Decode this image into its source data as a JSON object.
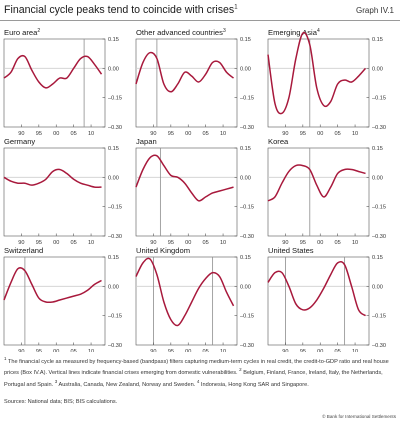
{
  "title": "Financial cycle peaks tend to coincide with crises",
  "title_note": "1",
  "graph_id": "Graph IV.1",
  "footnote": [
    {
      "mark": "1",
      "text": " The financial cycle as measured by frequency-based (bandpass) filters capturing medium-term cycles in real credit, the credit-to-GDP ratio and real house prices (Box IV.A). Vertical lines indicate financial crises emerging from domestic vulnerabilities. "
    },
    {
      "mark": "2",
      "text": " Belgium, Finland, France, Ireland, Italy, the Netherlands, Portugal and Spain. "
    },
    {
      "mark": "3",
      "text": " Australia, Canada, New Zealand, Norway and Sweden. "
    },
    {
      "mark": "4",
      "text": " Indonesia, Hong Kong SAR and Singapore."
    }
  ],
  "sources": "Sources: National data; BIS; BIS calculations.",
  "copyright": "© Bank for International Settlements",
  "colors": {
    "line": "#a8193c",
    "crisis_line": "#8c8c8c",
    "zero_line": "#cfcfcf"
  },
  "chart_data": [
    {
      "type": "line",
      "title": "Euro area",
      "note": "2",
      "x": [
        1985,
        1987,
        1989,
        1991,
        1993,
        1995,
        1997,
        1999,
        2001,
        2003,
        2005,
        2007,
        2009,
        2011,
        2013
      ],
      "y": [
        -0.05,
        -0.02,
        0.05,
        0.06,
        -0.01,
        -0.07,
        -0.1,
        -0.08,
        -0.05,
        -0.05,
        0.0,
        0.05,
        0.06,
        0.02,
        -0.03
      ],
      "crises": [
        2008
      ],
      "x_ticks": [
        "90",
        "95",
        "00",
        "05",
        "10"
      ],
      "y_ticks": [
        "0.15",
        "0.00",
        "–0.15",
        "–0.30"
      ],
      "ylim": [
        -0.3,
        0.15
      ]
    },
    {
      "type": "line",
      "title": "Other advanced countries",
      "note": "3",
      "x": [
        1985,
        1987,
        1989,
        1991,
        1993,
        1995,
        1997,
        1999,
        2001,
        2003,
        2005,
        2007,
        2009,
        2011,
        2013
      ],
      "y": [
        -0.08,
        0.03,
        0.08,
        0.05,
        -0.08,
        -0.12,
        -0.08,
        -0.02,
        -0.04,
        -0.07,
        -0.03,
        0.03,
        0.03,
        -0.02,
        -0.05
      ],
      "crises": [
        1991
      ],
      "x_ticks": [
        "90",
        "95",
        "00",
        "05",
        "10"
      ],
      "y_ticks": [
        "0.15",
        "0.00",
        "–0.15",
        "–0.30"
      ],
      "ylim": [
        -0.3,
        0.15
      ]
    },
    {
      "type": "line",
      "title": "Emerging Asia",
      "note": "4",
      "x": [
        1985,
        1987,
        1989,
        1991,
        1993,
        1995,
        1997,
        1999,
        2001,
        2003,
        2005,
        2007,
        2009,
        2011,
        2013
      ],
      "y": [
        0.07,
        -0.18,
        -0.23,
        -0.15,
        0.05,
        0.18,
        0.12,
        -0.1,
        -0.19,
        -0.17,
        -0.08,
        -0.06,
        -0.07,
        -0.04,
        0.0
      ],
      "crises": [
        1997
      ],
      "x_ticks": [
        "90",
        "95",
        "00",
        "05",
        "10"
      ],
      "y_ticks": [
        "0.15",
        "0.00",
        "–0.15",
        "–0.30"
      ],
      "ylim": [
        -0.3,
        0.15
      ]
    },
    {
      "type": "line",
      "title": "Germany",
      "note": "",
      "x": [
        1985,
        1987,
        1989,
        1991,
        1993,
        1995,
        1997,
        1999,
        2001,
        2003,
        2005,
        2007,
        2009,
        2011,
        2013
      ],
      "y": [
        0.0,
        -0.02,
        -0.03,
        -0.03,
        -0.04,
        -0.03,
        -0.01,
        0.03,
        0.04,
        0.02,
        -0.01,
        -0.03,
        -0.04,
        -0.05,
        -0.05
      ],
      "crises": [],
      "x_ticks": [
        "90",
        "95",
        "00",
        "05",
        "10"
      ],
      "y_ticks": [
        "0.15",
        "0.00",
        "–0.15",
        "–0.30"
      ],
      "ylim": [
        -0.3,
        0.15
      ]
    },
    {
      "type": "line",
      "title": "Japan",
      "note": "",
      "x": [
        1985,
        1987,
        1989,
        1991,
        1993,
        1995,
        1997,
        1999,
        2001,
        2003,
        2005,
        2007,
        2009,
        2011,
        2013
      ],
      "y": [
        -0.05,
        0.04,
        0.1,
        0.11,
        0.06,
        0.01,
        0.0,
        -0.03,
        -0.08,
        -0.12,
        -0.1,
        -0.08,
        -0.07,
        -0.06,
        -0.05
      ],
      "crises": [
        1992
      ],
      "x_ticks": [
        "90",
        "95",
        "00",
        "05",
        "10"
      ],
      "y_ticks": [
        "0.15",
        "0.00",
        "–0.15",
        "–0.30"
      ],
      "ylim": [
        -0.3,
        0.15
      ]
    },
    {
      "type": "line",
      "title": "Korea",
      "note": "",
      "x": [
        1985,
        1987,
        1989,
        1991,
        1993,
        1995,
        1997,
        1999,
        2001,
        2003,
        2005,
        2007,
        2009,
        2011,
        2013
      ],
      "y": [
        -0.12,
        -0.1,
        -0.03,
        0.03,
        0.06,
        0.06,
        0.04,
        -0.04,
        -0.1,
        -0.05,
        0.02,
        0.04,
        0.04,
        0.03,
        0.02
      ],
      "crises": [
        1997
      ],
      "x_ticks": [
        "90",
        "95",
        "00",
        "05",
        "10"
      ],
      "y_ticks": [
        "0.15",
        "0.00",
        "–0.15",
        "–0.30"
      ],
      "ylim": [
        -0.3,
        0.15
      ]
    },
    {
      "type": "line",
      "title": "Switzerland",
      "note": "",
      "x": [
        1985,
        1987,
        1989,
        1991,
        1993,
        1995,
        1997,
        1999,
        2001,
        2003,
        2005,
        2007,
        2009,
        2011,
        2013
      ],
      "y": [
        -0.07,
        0.02,
        0.09,
        0.08,
        0.01,
        -0.06,
        -0.08,
        -0.08,
        -0.07,
        -0.06,
        -0.05,
        -0.04,
        -0.02,
        0.01,
        0.03
      ],
      "crises": [
        1991
      ],
      "x_ticks": [
        "90",
        "95",
        "00",
        "05",
        "10"
      ],
      "y_ticks": [
        "0.15",
        "0.00",
        "–0.15",
        "–0.30"
      ],
      "ylim": [
        -0.3,
        0.15
      ]
    },
    {
      "type": "line",
      "title": "United Kingdom",
      "note": "",
      "x": [
        1985,
        1987,
        1989,
        1991,
        1993,
        1995,
        1997,
        1999,
        2001,
        2003,
        2005,
        2007,
        2009,
        2011,
        2013
      ],
      "y": [
        0.05,
        0.12,
        0.14,
        0.06,
        -0.08,
        -0.17,
        -0.2,
        -0.15,
        -0.08,
        -0.01,
        0.04,
        0.07,
        0.05,
        -0.03,
        -0.1
      ],
      "crises": [
        1990,
        2007
      ],
      "x_ticks": [
        "90",
        "95",
        "00",
        "05",
        "10"
      ],
      "y_ticks": [
        "0.15",
        "0.00",
        "–0.15",
        "–0.30"
      ],
      "ylim": [
        -0.3,
        0.15
      ]
    },
    {
      "type": "line",
      "title": "United States",
      "note": "",
      "x": [
        1985,
        1987,
        1989,
        1991,
        1993,
        1995,
        1997,
        1999,
        2001,
        2003,
        2005,
        2007,
        2009,
        2011,
        2013
      ],
      "y": [
        0.02,
        0.07,
        0.07,
        0.0,
        -0.09,
        -0.12,
        -0.11,
        -0.07,
        -0.01,
        0.06,
        0.12,
        0.11,
        0.0,
        -0.12,
        -0.15
      ],
      "crises": [
        1990,
        2007
      ],
      "x_ticks": [
        "90",
        "95",
        "00",
        "05",
        "10"
      ],
      "y_ticks": [
        "0.15",
        "0.00",
        "–0.15",
        "–0.30"
      ],
      "ylim": [
        -0.3,
        0.15
      ]
    }
  ]
}
